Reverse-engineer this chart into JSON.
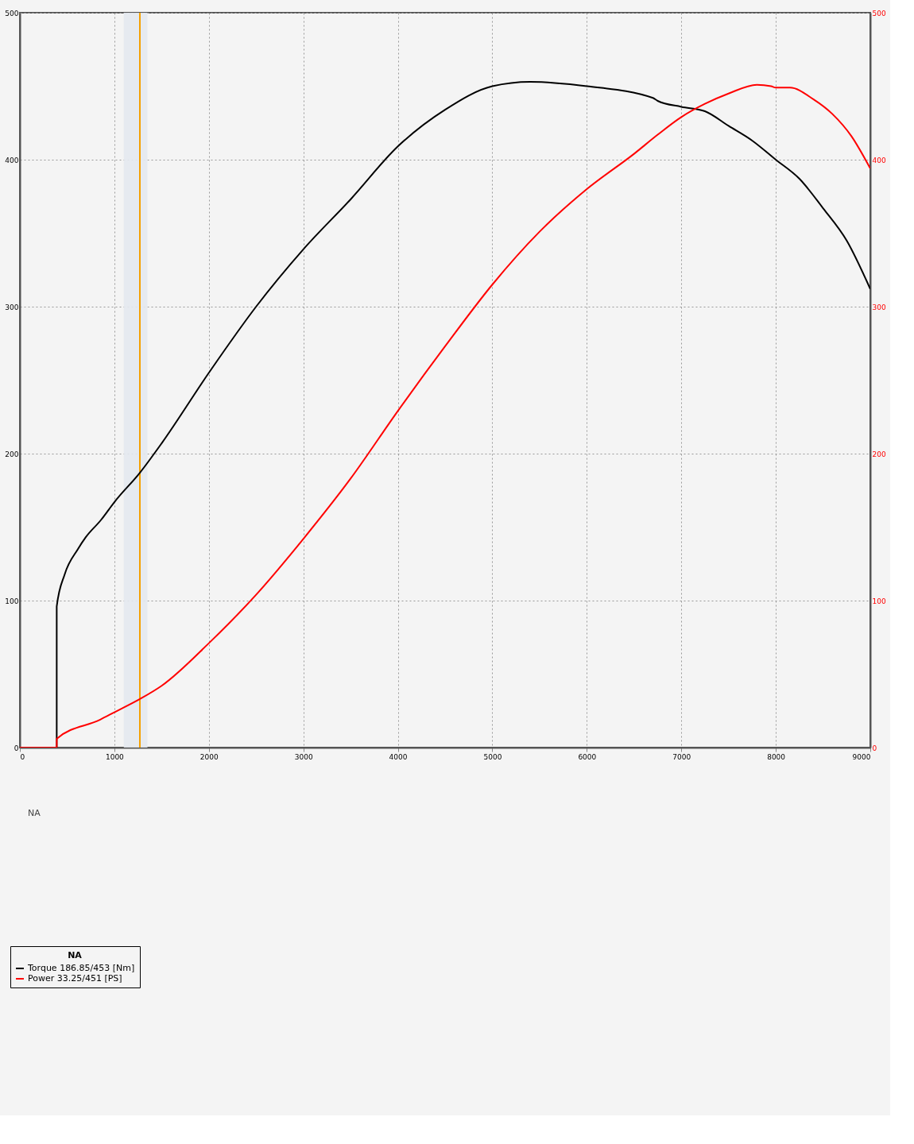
{
  "chart_data": {
    "type": "line",
    "xlim": [
      0,
      9000
    ],
    "xticks": [
      0,
      1000,
      2000,
      3000,
      4000,
      5000,
      6000,
      7000,
      8000,
      9000
    ],
    "ylim": [
      0,
      500
    ],
    "yticks": [
      0,
      100,
      200,
      300,
      400,
      500
    ],
    "y2lim": [
      0,
      500
    ],
    "y2ticks": [
      0,
      100,
      200,
      300,
      400,
      500
    ],
    "grid": true,
    "legend": "bottom left",
    "legend_title": "NA",
    "marker": "none",
    "line_style": "solid",
    "annotations": [
      "NA"
    ],
    "ref_lines": [
      {
        "axis": "x",
        "value": 1270,
        "label": null,
        "color": "#f5a000"
      }
    ],
    "bands": [
      {
        "axis": "x",
        "from": 1100,
        "to": 1350,
        "label": null,
        "color": "#e4e9ef"
      }
    ],
    "series": [
      {
        "name": "Torque 186.85/453 [Nm]",
        "color": "#000000",
        "x": [
          390,
          390,
          475,
          614,
          696,
          860,
          942,
          1000,
          1270,
          1500,
          2000,
          2500,
          3000,
          3500,
          4000,
          4500,
          5000,
          5400,
          6000,
          6700,
          6750,
          7000,
          7250,
          7500,
          7750,
          8000,
          8250,
          8500,
          8750,
          9000
        ],
        "values": [
          0,
          96,
          118,
          135,
          143,
          155,
          162,
          167,
          187,
          207,
          255,
          300,
          339,
          373,
          409,
          434,
          450,
          453,
          450,
          442,
          440,
          436,
          433,
          423,
          413,
          400,
          387,
          367,
          345,
          312
        ]
      },
      {
        "name": "Power 33.25/451 [PS]",
        "color": "#ff0000",
        "axis": "y2",
        "x": [
          0,
          390,
          390,
          850,
          1000,
          1270,
          1500,
          2000,
          2500,
          3000,
          3500,
          4000,
          4500,
          5000,
          5500,
          6000,
          6500,
          6750,
          7000,
          7250,
          7500,
          7800,
          7950,
          8000,
          8150,
          8400,
          8600,
          8800,
          9000
        ],
        "values": [
          0,
          0,
          6,
          19,
          24,
          33,
          42,
          71,
          104,
          142,
          183,
          229,
          273,
          315,
          351,
          380,
          404,
          417,
          429,
          438,
          445,
          451,
          450,
          449,
          449,
          441,
          431,
          416,
          394
        ]
      }
    ]
  }
}
